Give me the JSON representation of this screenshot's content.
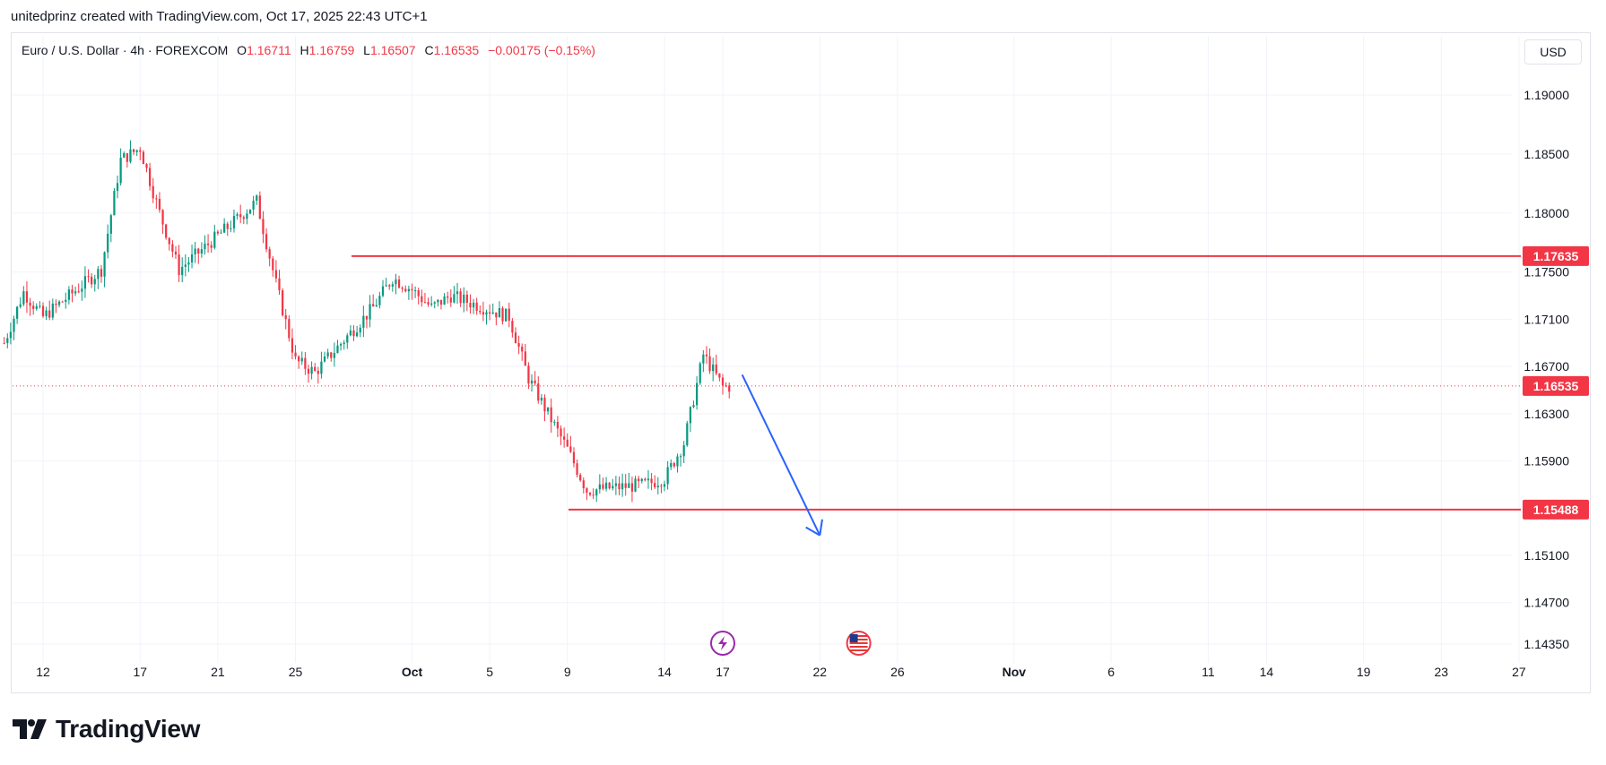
{
  "header": {
    "attribution": "unitedprinz created with TradingView.com, Oct 17, 2025 22:43 UTC+1"
  },
  "symbol": {
    "name": "Euro / U.S. Dollar · 4h · FOREXCOM",
    "open_label": "O",
    "open": "1.16711",
    "high_label": "H",
    "high": "1.16759",
    "low_label": "L",
    "low": "1.16507",
    "close_label": "C",
    "close": "1.16535",
    "change": "−0.00175 (−0.15%)"
  },
  "currency_button": "USD",
  "brand": {
    "logo_text": "TradingView",
    "logo_icon": "tradingview-logo-icon"
  },
  "colors": {
    "up": "#089981",
    "down": "#f23645",
    "level": "#f23645",
    "arrow": "#2962ff",
    "grid": "#f0f3fa",
    "event_purple": "#9c27b0"
  },
  "chart_data": {
    "type": "candlestick",
    "timeframe": "4h",
    "y_ticks": [
      "1.19000",
      "1.18500",
      "1.18000",
      "1.17500",
      "1.17100",
      "1.16700",
      "1.16300",
      "1.15900",
      "1.15100",
      "1.14700",
      "1.14350"
    ],
    "x_ticks": [
      "12",
      "17",
      "21",
      "25",
      "Oct",
      "5",
      "9",
      "14",
      "17",
      "22",
      "26",
      "Nov",
      "6",
      "11",
      "14",
      "19",
      "23",
      "27"
    ],
    "last_price": {
      "value": 1.16535,
      "label": "1.16535"
    },
    "horizontal_levels": [
      {
        "name": "resistance",
        "value": 1.17635,
        "label": "1.17635"
      },
      {
        "name": "support",
        "value": 1.15488,
        "label": "1.15488"
      }
    ],
    "projection_arrow": {
      "from": {
        "date": "Oct 18",
        "price": 1.1663
      },
      "to": {
        "date": "Oct 22",
        "price": 1.1527
      }
    },
    "events": [
      {
        "type": "economic-event",
        "icon": "lightning-icon",
        "date": "Oct 17"
      },
      {
        "type": "us-event",
        "icon": "us-flag-icon",
        "date": "Oct 24"
      }
    ],
    "candle_anchors": [
      [
        "Sep 10",
        1.169
      ],
      [
        "Sep 11",
        1.1733
      ],
      [
        "Sep 12",
        1.1712
      ],
      [
        "Sep 15",
        1.1752
      ],
      [
        "Sep 16",
        1.1845
      ],
      [
        "Sep 17",
        1.1855
      ],
      [
        "Sep 18",
        1.18
      ],
      [
        "Sep 19",
        1.1752
      ],
      [
        "Sep 22",
        1.1795
      ],
      [
        "Sep 23",
        1.181
      ],
      [
        "Sep 24",
        1.174
      ],
      [
        "Sep 25",
        1.1675
      ],
      [
        "Sep 26",
        1.1665
      ],
      [
        "Sep 29",
        1.172
      ],
      [
        "Sep 30",
        1.1745
      ],
      [
        "Oct 1",
        1.1735
      ],
      [
        "Oct 2",
        1.172
      ],
      [
        "Oct 3",
        1.173
      ],
      [
        "Oct 6",
        1.1712
      ],
      [
        "Oct 7",
        1.166
      ],
      [
        "Oct 8",
        1.163
      ],
      [
        "Oct 9",
        1.16
      ],
      [
        "Oct 10",
        1.1565
      ],
      [
        "Oct 13",
        1.157
      ],
      [
        "Oct 14",
        1.1575
      ],
      [
        "Oct 15",
        1.1605
      ],
      [
        "Oct 16",
        1.168
      ],
      [
        "Oct 17",
        1.1653
      ]
    ]
  }
}
